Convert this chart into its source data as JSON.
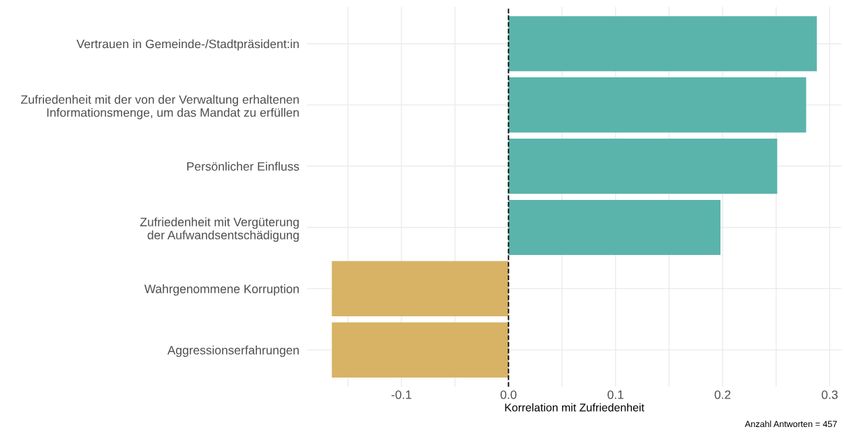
{
  "chart_data": {
    "type": "bar",
    "orientation": "horizontal",
    "categories": [
      "Vertrauen in Gemeinde-/Stadtpräsident:in",
      "Zufriedenheit mit der von der Verwaltung erhaltenen\nInformationsmenge, um das Mandat zu erfüllen",
      "Persönlicher Einfluss",
      "Zufriedenheit mit Vergüterung\nder Aufwandsentschädigung",
      "Wahrgenommene Korruption",
      "Aggressionserfahrungen"
    ],
    "values": [
      0.288,
      0.278,
      0.251,
      0.198,
      -0.165,
      -0.165
    ],
    "colors": [
      "#5ab4ac",
      "#5ab4ac",
      "#5ab4ac",
      "#5ab4ac",
      "#d8b365",
      "#d8b365"
    ],
    "xlabel": "Korrelation mit Zufriedenheit",
    "xlim": [
      -0.188,
      0.311
    ],
    "xticks": [
      {
        "value": -0.15,
        "label": null
      },
      {
        "value": -0.1,
        "label": "-0.1"
      },
      {
        "value": -0.05,
        "label": null
      },
      {
        "value": 0.0,
        "label": "0.0"
      },
      {
        "value": 0.05,
        "label": null
      },
      {
        "value": 0.1,
        "label": "0.1"
      },
      {
        "value": 0.15,
        "label": null
      },
      {
        "value": 0.2,
        "label": "0.2"
      },
      {
        "value": 0.25,
        "label": null
      },
      {
        "value": 0.3,
        "label": "0.3"
      }
    ],
    "ref_lines": [
      {
        "axis": "x",
        "value": 0,
        "color": "#000000",
        "line_style": "dashed"
      }
    ],
    "grid": true,
    "annotations": [
      "Anzahl Antworten = 457"
    ]
  }
}
